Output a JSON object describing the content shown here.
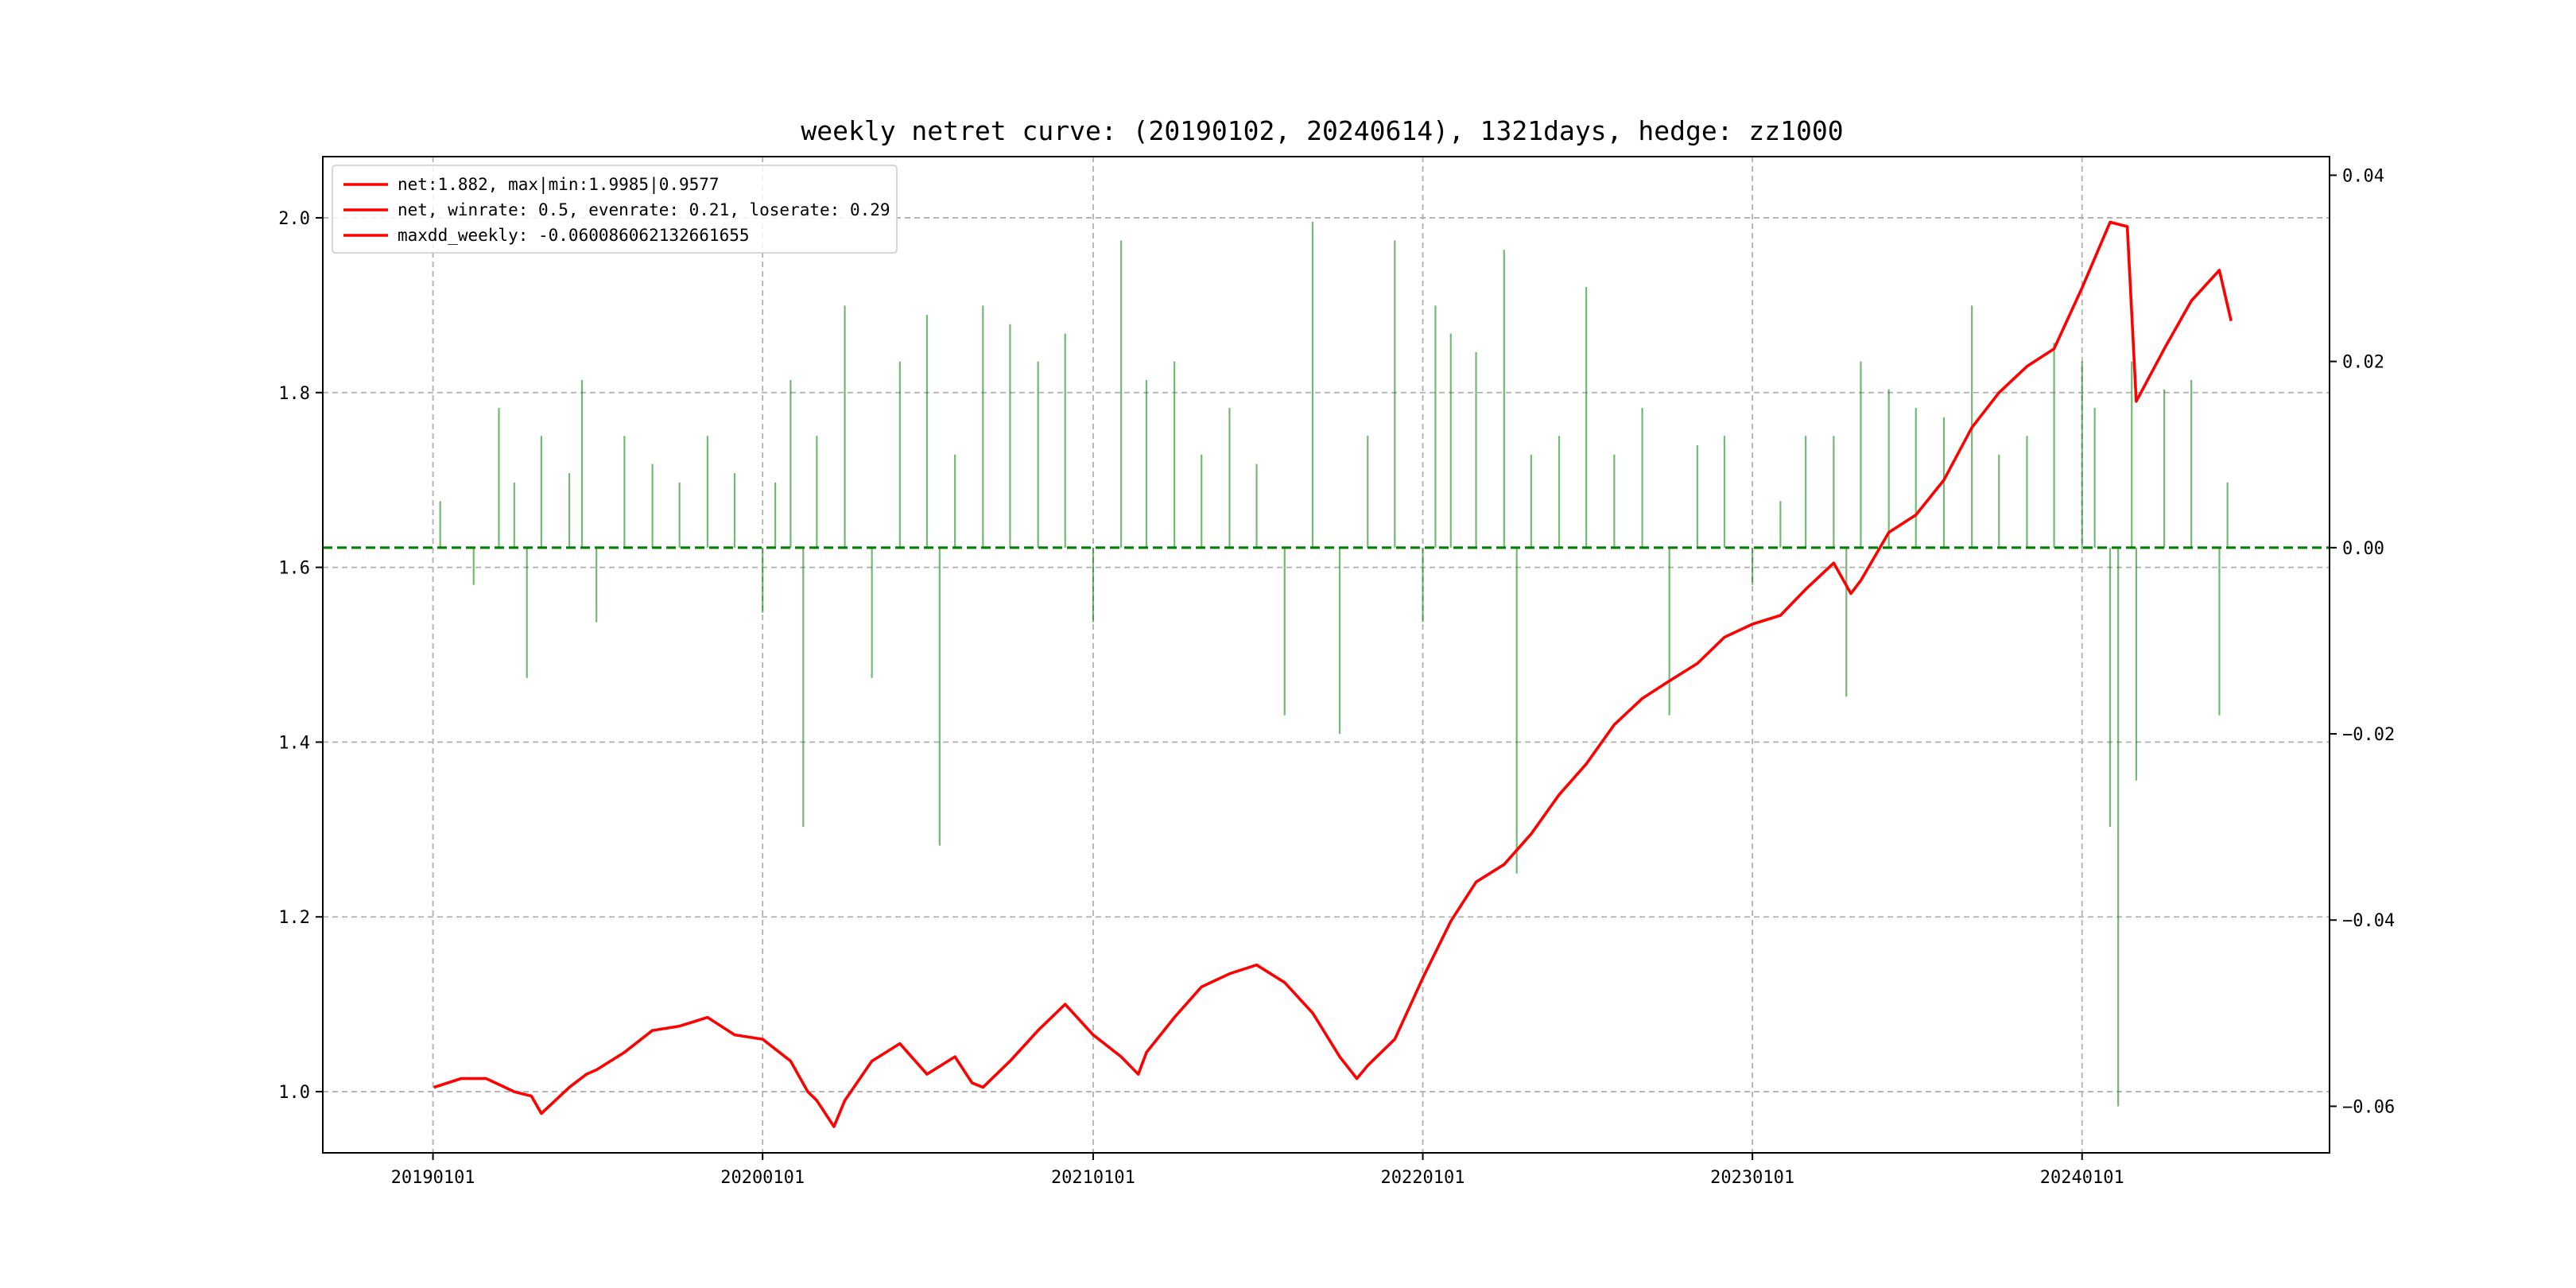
{
  "chart_data": {
    "type": "line",
    "title": "weekly netret curve: (20190102, 20240614), 1321days, hedge: zz1000",
    "x_ticks": [
      "20190101",
      "20200101",
      "20210101",
      "20220101",
      "20230101",
      "20240101"
    ],
    "x_range": [
      "2018-09-01",
      "2024-10-01"
    ],
    "y_left": {
      "ylim": [
        0.93,
        2.07
      ],
      "ticks": [
        1.0,
        1.2,
        1.4,
        1.6,
        1.8,
        2.0
      ],
      "tick_labels": [
        "1.0",
        "1.2",
        "1.4",
        "1.6",
        "1.8",
        "2.0"
      ]
    },
    "y_right": {
      "ylim": [
        -0.065,
        0.042
      ],
      "ticks": [
        -0.06,
        -0.04,
        -0.02,
        0.0,
        0.02,
        0.04
      ],
      "tick_labels": [
        "−0.06",
        "−0.04",
        "−0.02",
        "0.00",
        "0.02",
        "0.04"
      ]
    },
    "grid": true,
    "legend": {
      "placement": "top-left",
      "entries": [
        "net:1.882, max|min:1.9985|0.9577",
        "net, winrate: 0.5, evenrate: 0.21, loserate: 0.29",
        "maxdd_weekly: -0.060086062132661655"
      ]
    },
    "colors": {
      "net": "#ff0000",
      "weekly_ret": "#008000",
      "zero_line": "#008000",
      "grid": "#b0b0b0"
    },
    "zero_line": 0.0,
    "series": [
      {
        "name": "net",
        "axis": "left",
        "style": "line",
        "points": [
          [
            "2019-01-02",
            1.005
          ],
          [
            "2019-02-01",
            1.015
          ],
          [
            "2019-03-01",
            1.015
          ],
          [
            "2019-04-01",
            1.0
          ],
          [
            "2019-04-20",
            0.995
          ],
          [
            "2019-05-01",
            0.975
          ],
          [
            "2019-06-01",
            1.005
          ],
          [
            "2019-06-20",
            1.02
          ],
          [
            "2019-07-01",
            1.025
          ],
          [
            "2019-08-01",
            1.045
          ],
          [
            "2019-09-01",
            1.07
          ],
          [
            "2019-10-01",
            1.075
          ],
          [
            "2019-11-01",
            1.085
          ],
          [
            "2019-12-01",
            1.065
          ],
          [
            "2020-01-01",
            1.06
          ],
          [
            "2020-02-01",
            1.035
          ],
          [
            "2020-02-20",
            1.0
          ],
          [
            "2020-03-01",
            0.99
          ],
          [
            "2020-03-20",
            0.96
          ],
          [
            "2020-04-01",
            0.99
          ],
          [
            "2020-05-01",
            1.035
          ],
          [
            "2020-06-01",
            1.055
          ],
          [
            "2020-07-01",
            1.02
          ],
          [
            "2020-08-01",
            1.04
          ],
          [
            "2020-08-20",
            1.01
          ],
          [
            "2020-09-01",
            1.005
          ],
          [
            "2020-10-01",
            1.035
          ],
          [
            "2020-11-01",
            1.07
          ],
          [
            "2020-12-01",
            1.1
          ],
          [
            "2021-01-01",
            1.065
          ],
          [
            "2021-02-01",
            1.04
          ],
          [
            "2021-02-20",
            1.02
          ],
          [
            "2021-03-01",
            1.045
          ],
          [
            "2021-04-01",
            1.085
          ],
          [
            "2021-05-01",
            1.12
          ],
          [
            "2021-06-01",
            1.135
          ],
          [
            "2021-07-01",
            1.145
          ],
          [
            "2021-08-01",
            1.125
          ],
          [
            "2021-09-01",
            1.09
          ],
          [
            "2021-10-01",
            1.04
          ],
          [
            "2021-10-20",
            1.015
          ],
          [
            "2021-11-01",
            1.03
          ],
          [
            "2021-12-01",
            1.06
          ],
          [
            "2022-01-01",
            1.13
          ],
          [
            "2022-02-01",
            1.195
          ],
          [
            "2022-03-01",
            1.24
          ],
          [
            "2022-04-01",
            1.26
          ],
          [
            "2022-05-01",
            1.295
          ],
          [
            "2022-06-01",
            1.34
          ],
          [
            "2022-07-01",
            1.375
          ],
          [
            "2022-08-01",
            1.42
          ],
          [
            "2022-09-01",
            1.45
          ],
          [
            "2022-10-01",
            1.47
          ],
          [
            "2022-11-01",
            1.49
          ],
          [
            "2022-12-01",
            1.52
          ],
          [
            "2023-01-01",
            1.535
          ],
          [
            "2023-02-01",
            1.545
          ],
          [
            "2023-03-01",
            1.575
          ],
          [
            "2023-04-01",
            1.605
          ],
          [
            "2023-04-20",
            1.57
          ],
          [
            "2023-05-01",
            1.585
          ],
          [
            "2023-06-01",
            1.64
          ],
          [
            "2023-07-01",
            1.66
          ],
          [
            "2023-08-01",
            1.7
          ],
          [
            "2023-09-01",
            1.76
          ],
          [
            "2023-10-01",
            1.8
          ],
          [
            "2023-11-01",
            1.83
          ],
          [
            "2023-12-01",
            1.85
          ],
          [
            "2024-01-01",
            1.92
          ],
          [
            "2024-02-01",
            1.995
          ],
          [
            "2024-02-20",
            1.99
          ],
          [
            "2024-03-01",
            1.79
          ],
          [
            "2024-04-01",
            1.85
          ],
          [
            "2024-05-01",
            1.905
          ],
          [
            "2024-06-01",
            1.94
          ],
          [
            "2024-06-14",
            1.882
          ]
        ]
      },
      {
        "name": "weekly_ret",
        "axis": "right",
        "style": "bar",
        "points": [
          [
            "2019-01-09",
            0.005
          ],
          [
            "2019-02-15",
            -0.004
          ],
          [
            "2019-03-15",
            0.015
          ],
          [
            "2019-04-01",
            0.007
          ],
          [
            "2019-04-15",
            -0.014
          ],
          [
            "2019-05-01",
            0.012
          ],
          [
            "2019-06-01",
            0.008
          ],
          [
            "2019-06-15",
            0.018
          ],
          [
            "2019-07-01",
            -0.008
          ],
          [
            "2019-08-01",
            0.012
          ],
          [
            "2019-09-01",
            0.009
          ],
          [
            "2019-10-01",
            0.007
          ],
          [
            "2019-11-01",
            0.012
          ],
          [
            "2019-12-01",
            0.008
          ],
          [
            "2020-01-01",
            -0.007
          ],
          [
            "2020-01-15",
            0.007
          ],
          [
            "2020-02-01",
            0.018
          ],
          [
            "2020-02-15",
            -0.03
          ],
          [
            "2020-03-01",
            0.012
          ],
          [
            "2020-04-01",
            0.026
          ],
          [
            "2020-05-01",
            -0.014
          ],
          [
            "2020-06-01",
            0.02
          ],
          [
            "2020-07-01",
            0.025
          ],
          [
            "2020-07-15",
            -0.032
          ],
          [
            "2020-08-01",
            0.01
          ],
          [
            "2020-09-01",
            0.026
          ],
          [
            "2020-10-01",
            0.024
          ],
          [
            "2020-11-01",
            0.02
          ],
          [
            "2020-12-01",
            0.023
          ],
          [
            "2021-01-01",
            -0.008
          ],
          [
            "2021-02-01",
            0.033
          ],
          [
            "2021-03-01",
            0.018
          ],
          [
            "2021-04-01",
            0.02
          ],
          [
            "2021-05-01",
            0.01
          ],
          [
            "2021-06-01",
            0.015
          ],
          [
            "2021-07-01",
            0.009
          ],
          [
            "2021-08-01",
            -0.018
          ],
          [
            "2021-09-01",
            0.035
          ],
          [
            "2021-10-01",
            -0.02
          ],
          [
            "2021-11-01",
            0.012
          ],
          [
            "2021-12-01",
            0.033
          ],
          [
            "2022-01-01",
            -0.008
          ],
          [
            "2022-01-15",
            0.026
          ],
          [
            "2022-02-01",
            0.023
          ],
          [
            "2022-03-01",
            0.021
          ],
          [
            "2022-04-01",
            0.032
          ],
          [
            "2022-04-15",
            -0.035
          ],
          [
            "2022-05-01",
            0.01
          ],
          [
            "2022-06-01",
            0.012
          ],
          [
            "2022-07-01",
            0.028
          ],
          [
            "2022-08-01",
            0.01
          ],
          [
            "2022-09-01",
            0.015
          ],
          [
            "2022-10-01",
            -0.018
          ],
          [
            "2022-11-01",
            0.011
          ],
          [
            "2022-12-01",
            0.012
          ],
          [
            "2023-01-01",
            -0.004
          ],
          [
            "2023-02-01",
            0.005
          ],
          [
            "2023-03-01",
            0.012
          ],
          [
            "2023-04-01",
            0.012
          ],
          [
            "2023-04-15",
            -0.016
          ],
          [
            "2023-05-01",
            0.02
          ],
          [
            "2023-06-01",
            0.017
          ],
          [
            "2023-07-01",
            0.015
          ],
          [
            "2023-08-01",
            0.014
          ],
          [
            "2023-09-01",
            0.026
          ],
          [
            "2023-10-01",
            0.01
          ],
          [
            "2023-11-01",
            0.012
          ],
          [
            "2023-12-01",
            0.022
          ],
          [
            "2024-01-01",
            0.02
          ],
          [
            "2024-01-15",
            0.015
          ],
          [
            "2024-02-01",
            -0.03
          ],
          [
            "2024-02-10",
            -0.06
          ],
          [
            "2024-02-25",
            0.02
          ],
          [
            "2024-03-01",
            -0.025
          ],
          [
            "2024-04-01",
            0.017
          ],
          [
            "2024-05-01",
            0.018
          ],
          [
            "2024-06-01",
            -0.018
          ],
          [
            "2024-06-10",
            0.007
          ]
        ]
      }
    ]
  }
}
